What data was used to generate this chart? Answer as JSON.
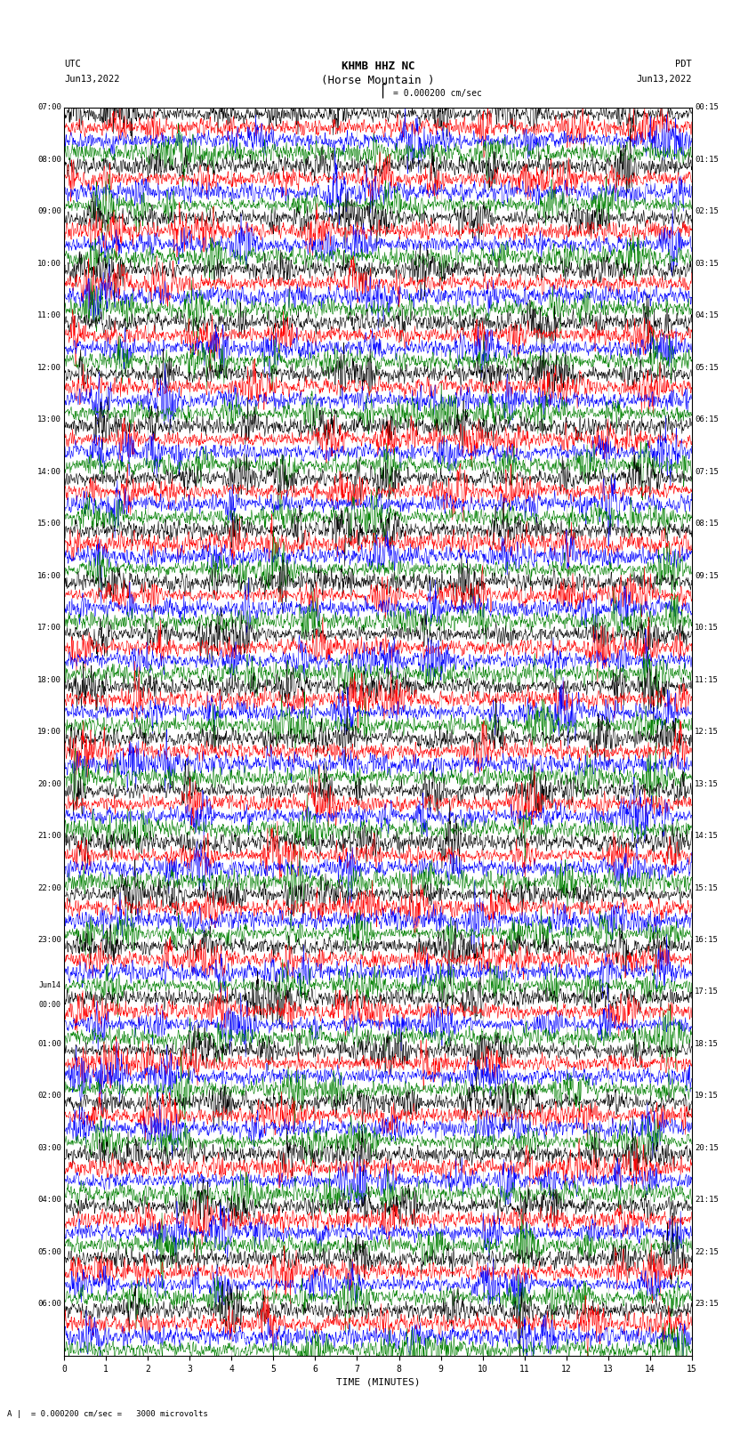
{
  "title_line1": "KHMB HHZ NC",
  "title_line2": "(Horse Mountain )",
  "scale_label": "= 0.000200 cm/sec",
  "bottom_label": "= 0.000200 cm/sec =   3000 microvolts",
  "xlabel": "TIME (MINUTES)",
  "utc_header1": "UTC",
  "utc_header2": "Jun13,2022",
  "pdt_header1": "PDT",
  "pdt_header2": "Jun13,2022",
  "utc_labels": [
    "07:00",
    "08:00",
    "09:00",
    "10:00",
    "11:00",
    "12:00",
    "13:00",
    "14:00",
    "15:00",
    "16:00",
    "17:00",
    "18:00",
    "19:00",
    "20:00",
    "21:00",
    "22:00",
    "23:00",
    "Jun14\n00:00",
    "01:00",
    "02:00",
    "03:00",
    "04:00",
    "05:00",
    "06:00"
  ],
  "pdt_labels": [
    "00:15",
    "01:15",
    "02:15",
    "03:15",
    "04:15",
    "05:15",
    "06:15",
    "07:15",
    "08:15",
    "09:15",
    "10:15",
    "11:15",
    "12:15",
    "13:15",
    "14:15",
    "15:15",
    "16:15",
    "17:15",
    "18:15",
    "19:15",
    "20:15",
    "21:15",
    "22:15",
    "23:15"
  ],
  "trace_colors": [
    "black",
    "red",
    "blue",
    "green"
  ],
  "n_hour_blocks": 24,
  "n_traces_per_block": 4,
  "time_ticks": [
    0,
    1,
    2,
    3,
    4,
    5,
    6,
    7,
    8,
    9,
    10,
    11,
    12,
    13,
    14,
    15
  ],
  "fig_width": 8.5,
  "fig_height": 16.13,
  "dpi": 100,
  "background_color": "white",
  "noise_seed": 42
}
